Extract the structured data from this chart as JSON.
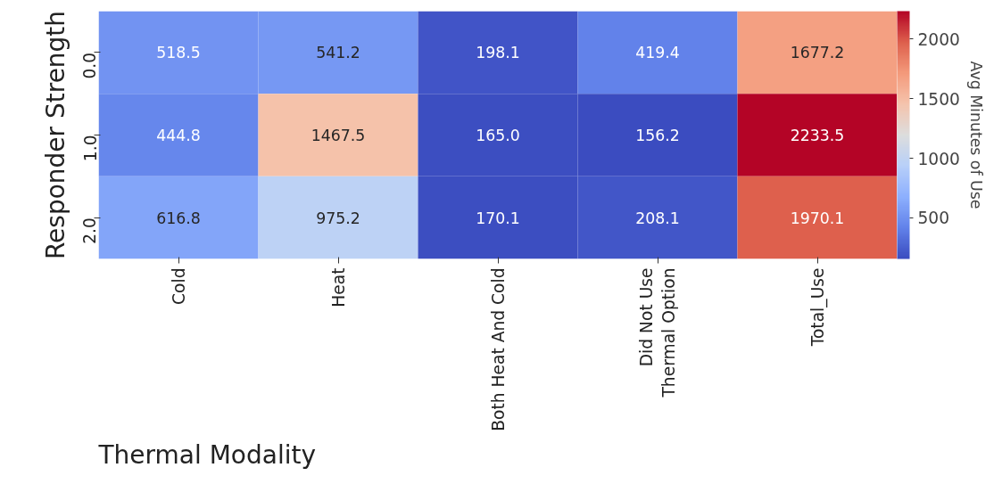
{
  "chart_data": {
    "type": "heatmap",
    "xlabel": "Thermal Modality",
    "ylabel": "Responder Strength",
    "clabel": "Avg Minutes of Use",
    "categories": [
      "Cold",
      "Heat",
      "Both Heat And Cold",
      "Did Not Use Thermal Option",
      "Total_Use"
    ],
    "y_categories": [
      "0.0",
      "1.0",
      "2.0"
    ],
    "cells": [
      [
        518.5,
        541.2,
        198.1,
        419.4,
        1677.2
      ],
      [
        444.8,
        1467.5,
        165.0,
        156.2,
        2233.5
      ],
      [
        616.8,
        975.2,
        170.1,
        208.1,
        1970.1
      ]
    ],
    "cell_labels": [
      [
        "518.5",
        "541.2",
        "198.1",
        "419.4",
        "1677.2"
      ],
      [
        "444.8",
        "1467.5",
        "165.0",
        "156.2",
        "2233.5"
      ],
      [
        "616.8",
        "975.2",
        "170.1",
        "208.1",
        "1970.1"
      ]
    ],
    "clim": [
      156.2,
      2233.5
    ],
    "cticks": [
      500,
      1000,
      1500,
      2000
    ],
    "data_labels": true
  }
}
